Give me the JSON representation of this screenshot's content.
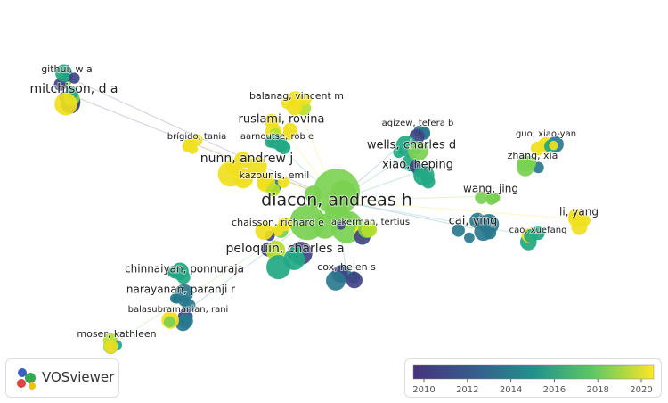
{
  "nodes": [
    {
      "label": "githui, w a"
    },
    {
      "label": "mitchison, d a"
    },
    {
      "label": "balanag, vincent m"
    },
    {
      "label": "ruslami, rovina"
    },
    {
      "label": "brígido, tania"
    },
    {
      "label": "aarnoutse, rob e"
    },
    {
      "label": "agizew, tefera b"
    },
    {
      "label": "guo, xiao-yan"
    },
    {
      "label": "wells, charles d"
    },
    {
      "label": "nunn, andrew j"
    },
    {
      "label": "xiao, heping"
    },
    {
      "label": "zhang, xia"
    },
    {
      "label": "kazounis, emil"
    },
    {
      "label": "wang, jing"
    },
    {
      "label": "diacon, andreas h"
    },
    {
      "label": "li, yang"
    },
    {
      "label": "chaisson, richard e"
    },
    {
      "label": "ackerman, tertius"
    },
    {
      "label": "cai, ying"
    },
    {
      "label": "cao, xuefang"
    },
    {
      "label": "peloquin, charles a"
    },
    {
      "label": "cox, helen s"
    },
    {
      "label": "chinnaiyan, ponnuraja"
    },
    {
      "label": "narayanan, paranji r"
    },
    {
      "label": "balasubramanian, rani"
    },
    {
      "label": "moser, kathleen"
    }
  ],
  "brand": "VOSviewer",
  "legend": {
    "ticks": [
      2010,
      2012,
      2014,
      2016,
      2018,
      2020
    ]
  }
}
